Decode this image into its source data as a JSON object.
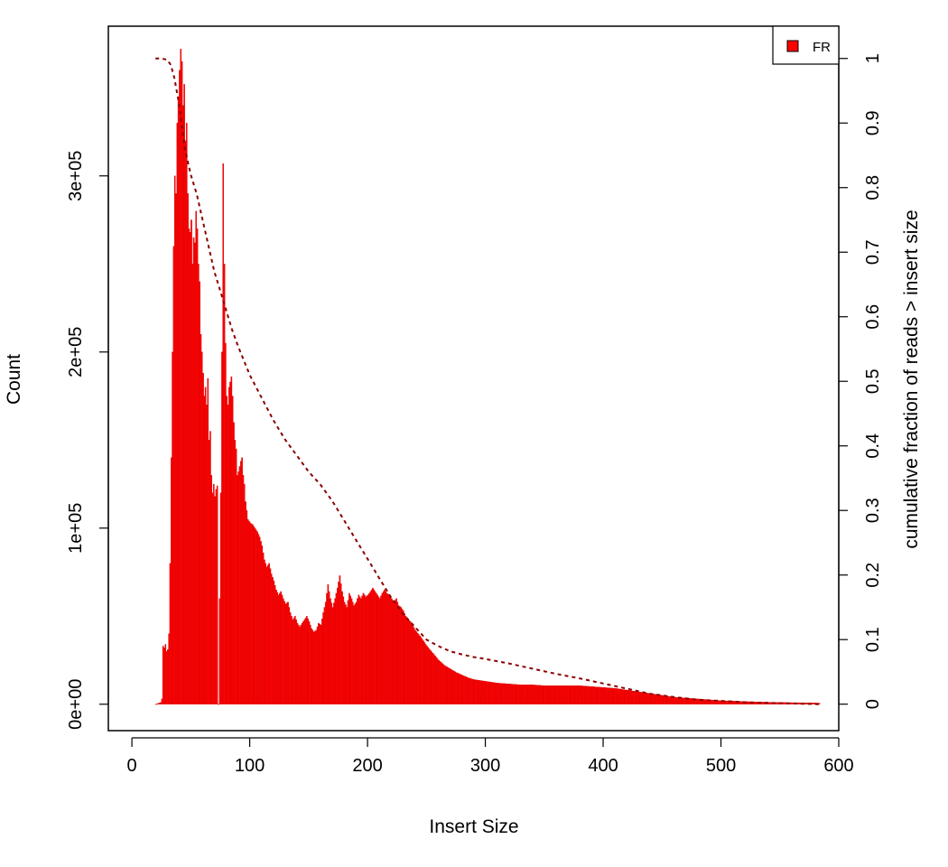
{
  "chart_data": {
    "type": "bar",
    "title": "",
    "xlabel": "Insert Size",
    "ylabel": "Count",
    "y2label": "cumulative fraction of reads > insert size",
    "xlim": [
      -20,
      600
    ],
    "ylim": [
      -15000,
      385000
    ],
    "y2lim": [
      -0.041,
      1.05
    ],
    "xticks": [
      0,
      100,
      200,
      300,
      400,
      500,
      600
    ],
    "yticks": [
      {
        "value": 0,
        "label": "0e+00"
      },
      {
        "value": 100000,
        "label": "1e+05"
      },
      {
        "value": 200000,
        "label": "2e+05"
      },
      {
        "value": 300000,
        "label": "3e+05"
      }
    ],
    "y2ticks": [
      {
        "value": 0,
        "label": "0"
      },
      {
        "value": 0.1,
        "label": "0.1"
      },
      {
        "value": 0.2,
        "label": "0.2"
      },
      {
        "value": 0.3,
        "label": "0.3"
      },
      {
        "value": 0.4,
        "label": "0.4"
      },
      {
        "value": 0.5,
        "label": "0.5"
      },
      {
        "value": 0.6,
        "label": "0.6"
      },
      {
        "value": 0.7,
        "label": "0.7"
      },
      {
        "value": 0.8,
        "label": "0.8"
      },
      {
        "value": 0.9,
        "label": "0.9"
      },
      {
        "value": 1,
        "label": "1"
      }
    ],
    "legend": {
      "position": "top-right",
      "entries": [
        {
          "label": "FR",
          "color": "#ff0000"
        }
      ]
    },
    "colors": {
      "bars": "#ff0000",
      "bar_edge": "#cc0000",
      "cumulative_line": "#8b0000"
    },
    "series": [
      {
        "name": "FR",
        "kind": "histogram",
        "points": [
          [
            20,
            0
          ],
          [
            24,
            1000
          ],
          [
            25,
            3000
          ],
          [
            26,
            33000
          ],
          [
            27,
            32000
          ],
          [
            28,
            34000
          ],
          [
            29,
            30000
          ],
          [
            30,
            31000
          ],
          [
            31,
            40000
          ],
          [
            32,
            80000
          ],
          [
            33,
            140000
          ],
          [
            34,
            200000
          ],
          [
            35,
            260000
          ],
          [
            36,
            300000
          ],
          [
            37,
            290000
          ],
          [
            38,
            330000
          ],
          [
            39,
            345000
          ],
          [
            40,
            360000
          ],
          [
            41,
            372000
          ],
          [
            42,
            365000
          ],
          [
            43,
            340000
          ],
          [
            44,
            352000
          ],
          [
            45,
            320000
          ],
          [
            46,
            330000
          ],
          [
            47,
            290000
          ],
          [
            48,
            270000
          ],
          [
            49,
            268000
          ],
          [
            50,
            275000
          ],
          [
            51,
            250000
          ],
          [
            52,
            265000
          ],
          [
            53,
            262000
          ],
          [
            54,
            280000
          ],
          [
            55,
            270000
          ],
          [
            56,
            250000
          ],
          [
            57,
            240000
          ],
          [
            58,
            210000
          ],
          [
            59,
            200000
          ],
          [
            60,
            188000
          ],
          [
            61,
            175000
          ],
          [
            62,
            180000
          ],
          [
            63,
            170000
          ],
          [
            64,
            185000
          ],
          [
            65,
            150000
          ],
          [
            66,
            155000
          ],
          [
            67,
            130000
          ],
          [
            68,
            120000
          ],
          [
            69,
            125000
          ],
          [
            70,
            118000
          ],
          [
            71,
            122000
          ],
          [
            72,
            124000
          ],
          [
            73,
            0
          ],
          [
            74,
            60000
          ],
          [
            75,
            120000
          ],
          [
            76,
            200000
          ],
          [
            77,
            307000
          ],
          [
            78,
            250000
          ],
          [
            79,
            205000
          ],
          [
            80,
            175000
          ],
          [
            81,
            170000
          ],
          [
            82,
            180000
          ],
          [
            83,
            183000
          ],
          [
            84,
            186000
          ],
          [
            85,
            175000
          ],
          [
            86,
            160000
          ],
          [
            87,
            150000
          ],
          [
            88,
            145000
          ],
          [
            89,
            130000
          ],
          [
            90,
            132000
          ],
          [
            91,
            135000
          ],
          [
            92,
            138000
          ],
          [
            93,
            140000
          ],
          [
            94,
            130000
          ],
          [
            95,
            125000
          ],
          [
            96,
            115000
          ],
          [
            97,
            110000
          ],
          [
            98,
            105000
          ],
          [
            100,
            103000
          ],
          [
            102,
            102000
          ],
          [
            104,
            100000
          ],
          [
            106,
            98000
          ],
          [
            108,
            95000
          ],
          [
            110,
            90000
          ],
          [
            112,
            82000
          ],
          [
            114,
            78000
          ],
          [
            116,
            80000
          ],
          [
            118,
            74000
          ],
          [
            120,
            70000
          ],
          [
            122,
            65000
          ],
          [
            124,
            62000
          ],
          [
            126,
            64000
          ],
          [
            128,
            60000
          ],
          [
            130,
            57000
          ],
          [
            132,
            58000
          ],
          [
            134,
            52000
          ],
          [
            136,
            48000
          ],
          [
            138,
            50000
          ],
          [
            140,
            46000
          ],
          [
            142,
            44000
          ],
          [
            144,
            46000
          ],
          [
            146,
            48000
          ],
          [
            148,
            50000
          ],
          [
            150,
            47000
          ],
          [
            152,
            43000
          ],
          [
            154,
            41000
          ],
          [
            156,
            42000
          ],
          [
            158,
            46000
          ],
          [
            160,
            45000
          ],
          [
            162,
            52000
          ],
          [
            164,
            58000
          ],
          [
            166,
            68000
          ],
          [
            168,
            60000
          ],
          [
            170,
            55000
          ],
          [
            172,
            60000
          ],
          [
            174,
            66000
          ],
          [
            176,
            73000
          ],
          [
            178,
            64000
          ],
          [
            180,
            58000
          ],
          [
            182,
            55000
          ],
          [
            184,
            63000
          ],
          [
            186,
            60000
          ],
          [
            188,
            56000
          ],
          [
            190,
            58000
          ],
          [
            192,
            62000
          ],
          [
            194,
            60000
          ],
          [
            196,
            63000
          ],
          [
            198,
            61000
          ],
          [
            200,
            62000
          ],
          [
            202,
            64000
          ],
          [
            204,
            66000
          ],
          [
            206,
            64000
          ],
          [
            208,
            62000
          ],
          [
            210,
            60000
          ],
          [
            212,
            63000
          ],
          [
            214,
            65000
          ],
          [
            216,
            63000
          ],
          [
            218,
            62000
          ],
          [
            220,
            60000
          ],
          [
            222,
            58000
          ],
          [
            224,
            60000
          ],
          [
            226,
            56000
          ],
          [
            228,
            55000
          ],
          [
            230,
            53000
          ],
          [
            232,
            50000
          ],
          [
            234,
            48000
          ],
          [
            236,
            47000
          ],
          [
            238,
            45000
          ],
          [
            240,
            42000
          ],
          [
            245,
            38000
          ],
          [
            250,
            33000
          ],
          [
            255,
            29000
          ],
          [
            260,
            25000
          ],
          [
            265,
            22000
          ],
          [
            270,
            20000
          ],
          [
            275,
            18000
          ],
          [
            280,
            16500
          ],
          [
            285,
            15000
          ],
          [
            290,
            14000
          ],
          [
            295,
            13500
          ],
          [
            300,
            13000
          ],
          [
            310,
            12000
          ],
          [
            320,
            11500
          ],
          [
            330,
            11000
          ],
          [
            340,
            11000
          ],
          [
            350,
            10500
          ],
          [
            360,
            10500
          ],
          [
            370,
            10500
          ],
          [
            380,
            10500
          ],
          [
            390,
            10000
          ],
          [
            400,
            9500
          ],
          [
            410,
            9000
          ],
          [
            420,
            8000
          ],
          [
            430,
            7000
          ],
          [
            440,
            6000
          ],
          [
            450,
            5000
          ],
          [
            460,
            4000
          ],
          [
            470,
            3500
          ],
          [
            480,
            3000
          ],
          [
            490,
            2500
          ],
          [
            500,
            2000
          ],
          [
            510,
            1800
          ],
          [
            520,
            1500
          ],
          [
            530,
            1300
          ],
          [
            540,
            1100
          ],
          [
            550,
            1000
          ],
          [
            560,
            900
          ],
          [
            570,
            800
          ],
          [
            580,
            700
          ],
          [
            583,
            600
          ]
        ]
      },
      {
        "name": "cumulative fraction of reads > insert size",
        "kind": "line",
        "axis": "right",
        "points": [
          [
            20,
            1.0
          ],
          [
            25,
            1.0
          ],
          [
            30,
            0.998
          ],
          [
            33,
            0.99
          ],
          [
            36,
            0.97
          ],
          [
            40,
            0.93
          ],
          [
            45,
            0.86
          ],
          [
            50,
            0.82
          ],
          [
            55,
            0.79
          ],
          [
            60,
            0.75
          ],
          [
            65,
            0.71
          ],
          [
            70,
            0.67
          ],
          [
            75,
            0.64
          ],
          [
            80,
            0.61
          ],
          [
            85,
            0.58
          ],
          [
            90,
            0.555
          ],
          [
            100,
            0.51
          ],
          [
            110,
            0.475
          ],
          [
            120,
            0.44
          ],
          [
            130,
            0.41
          ],
          [
            140,
            0.385
          ],
          [
            150,
            0.36
          ],
          [
            160,
            0.34
          ],
          [
            170,
            0.315
          ],
          [
            180,
            0.285
          ],
          [
            190,
            0.255
          ],
          [
            200,
            0.225
          ],
          [
            210,
            0.195
          ],
          [
            220,
            0.165
          ],
          [
            230,
            0.14
          ],
          [
            240,
            0.12
          ],
          [
            250,
            0.1
          ],
          [
            260,
            0.09
          ],
          [
            270,
            0.082
          ],
          [
            280,
            0.077
          ],
          [
            290,
            0.073
          ],
          [
            300,
            0.07
          ],
          [
            320,
            0.063
          ],
          [
            340,
            0.055
          ],
          [
            360,
            0.047
          ],
          [
            380,
            0.04
          ],
          [
            400,
            0.032
          ],
          [
            420,
            0.024
          ],
          [
            440,
            0.016
          ],
          [
            460,
            0.011
          ],
          [
            480,
            0.007
          ],
          [
            500,
            0.005
          ],
          [
            520,
            0.003
          ],
          [
            540,
            0.002
          ],
          [
            560,
            0.001
          ],
          [
            583,
            0.0
          ]
        ]
      }
    ]
  }
}
